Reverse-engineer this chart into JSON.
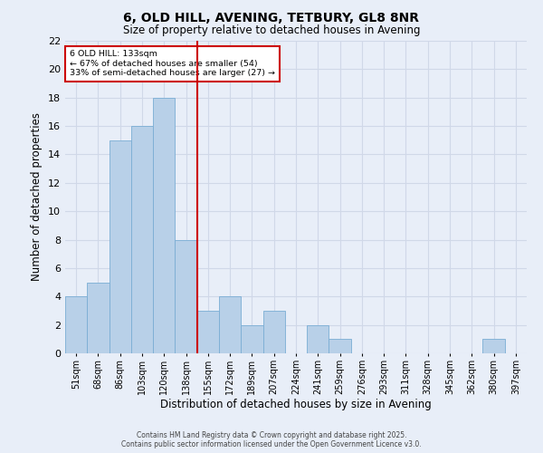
{
  "title_line1": "6, OLD HILL, AVENING, TETBURY, GL8 8NR",
  "title_line2": "Size of property relative to detached houses in Avening",
  "xlabel": "Distribution of detached houses by size in Avening",
  "ylabel": "Number of detached properties",
  "categories": [
    "51sqm",
    "68sqm",
    "86sqm",
    "103sqm",
    "120sqm",
    "138sqm",
    "155sqm",
    "172sqm",
    "189sqm",
    "207sqm",
    "224sqm",
    "241sqm",
    "259sqm",
    "276sqm",
    "293sqm",
    "311sqm",
    "328sqm",
    "345sqm",
    "362sqm",
    "380sqm",
    "397sqm"
  ],
  "values": [
    4,
    5,
    15,
    16,
    18,
    8,
    3,
    4,
    2,
    3,
    0,
    2,
    1,
    0,
    0,
    0,
    0,
    0,
    0,
    1,
    0
  ],
  "bar_color": "#b8d0e8",
  "bar_edge_color": "#7aadd4",
  "highlight_index": 5,
  "annotation_line1": "6 OLD HILL: 133sqm",
  "annotation_line2": "← 67% of detached houses are smaller (54)",
  "annotation_line3": "33% of semi-detached houses are larger (27) →",
  "annotation_box_color": "#ffffff",
  "annotation_box_edge_color": "#cc0000",
  "red_line_color": "#cc0000",
  "grid_color": "#d0d8e8",
  "background_color": "#e8eef8",
  "ylim": [
    0,
    22
  ],
  "yticks": [
    0,
    2,
    4,
    6,
    8,
    10,
    12,
    14,
    16,
    18,
    20,
    22
  ],
  "footer_line1": "Contains HM Land Registry data © Crown copyright and database right 2025.",
  "footer_line2": "Contains public sector information licensed under the Open Government Licence v3.0."
}
